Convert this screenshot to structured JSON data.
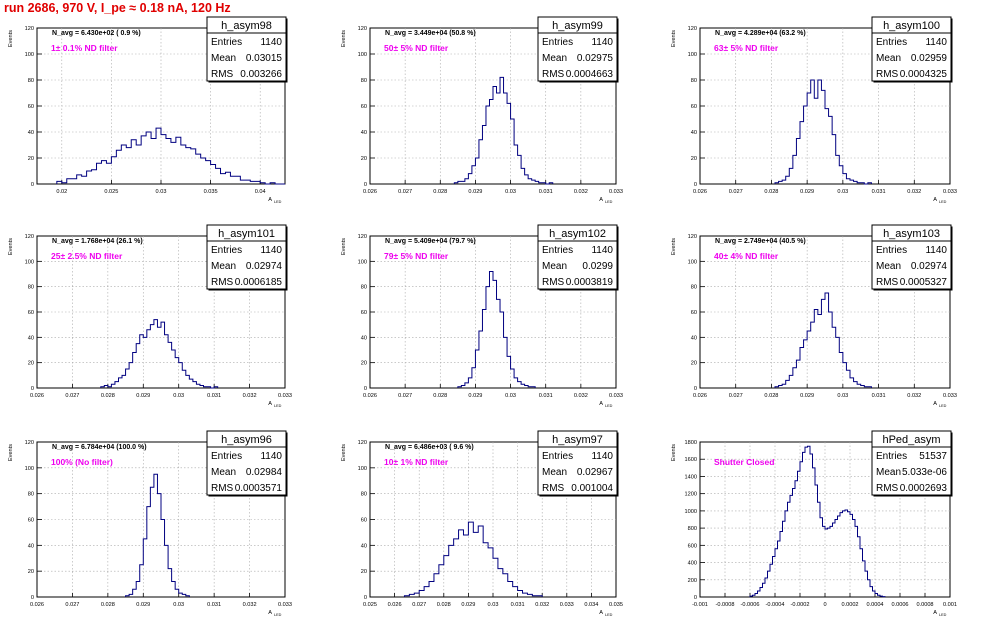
{
  "run_title": "run 2686,   970 V, I_pe ≈ 0.18 nA, 120 Hz",
  "colors": {
    "hist": "#000080",
    "label": "#ee00ee",
    "title": "#e00000",
    "grid": "#aaaaaa"
  },
  "chart_data": [
    {
      "type": "bar",
      "name": "h_asym98",
      "navg": "N_avg = 6.430e+02 ( 0.9 %)",
      "label": "1± 0.1% ND filter",
      "ylabel": "Events",
      "xlabel": "A",
      "xlabel_sub": "LED",
      "xlim": [
        0.0175,
        0.0425
      ],
      "ylim": [
        0,
        120
      ],
      "xticks": [
        0.02,
        0.025,
        0.03,
        0.035,
        0.04
      ],
      "xtick_labels": [
        "0.02",
        "0.025",
        "0.03",
        "0.035",
        "0.04"
      ],
      "yticks": [
        0,
        20,
        40,
        60,
        80,
        100,
        120
      ],
      "ytick_labels": [
        "0",
        "20",
        "40",
        "60",
        "80",
        "100",
        "120"
      ],
      "stats": [
        [
          "Entries",
          "1140"
        ],
        [
          "Mean",
          "0.03015"
        ],
        [
          "RMS",
          "0.003266"
        ]
      ],
      "bins": {
        "lo": 0.0195,
        "width": 0.0005,
        "counts": [
          2,
          1,
          4,
          4,
          7,
          6,
          10,
          11,
          16,
          18,
          16,
          21,
          26,
          30,
          28,
          34,
          30,
          37,
          40,
          35,
          43,
          38,
          35,
          32,
          36,
          30,
          28,
          27,
          23,
          20,
          18,
          15,
          12,
          8,
          9,
          6,
          6,
          3,
          3,
          2,
          2,
          1,
          0,
          1,
          0,
          0
        ]
      }
    },
    {
      "type": "bar",
      "name": "h_asym99",
      "navg": "N_avg = 3.449e+04 (50.8 %)",
      "label": "50± 5% ND filter",
      "ylabel": "Events",
      "xlabel": "A",
      "xlabel_sub": "LED",
      "xlim": [
        0.026,
        0.033
      ],
      "ylim": [
        0,
        120
      ],
      "xticks": [
        0.026,
        0.027,
        0.028,
        0.029,
        0.03,
        0.031,
        0.032,
        0.033
      ],
      "xtick_labels": [
        "0.026",
        "0.027",
        "0.028",
        "0.029",
        "0.03",
        "0.031",
        "0.032",
        "0.033"
      ],
      "yticks": [
        0,
        20,
        40,
        60,
        80,
        100,
        120
      ],
      "ytick_labels": [
        "0",
        "20",
        "40",
        "60",
        "80",
        "100",
        "120"
      ],
      "stats": [
        [
          "Entries",
          "1140"
        ],
        [
          "Mean",
          "0.02975"
        ],
        [
          "RMS",
          "0.0004663"
        ]
      ],
      "bins": {
        "lo": 0.0284,
        "width": 0.0001,
        "counts": [
          1,
          2,
          2,
          4,
          8,
          14,
          20,
          34,
          45,
          60,
          65,
          75,
          70,
          82,
          70,
          62,
          50,
          30,
          22,
          12,
          7,
          4,
          3,
          2,
          1,
          1,
          0,
          1
        ]
      }
    },
    {
      "type": "bar",
      "name": "h_asym100",
      "navg": "N_avg = 4.289e+04 (63.2 %)",
      "label": "63± 5% ND filter",
      "ylabel": "Events",
      "xlabel": "A",
      "xlabel_sub": "LED",
      "xlim": [
        0.026,
        0.033
      ],
      "ylim": [
        0,
        120
      ],
      "xticks": [
        0.026,
        0.027,
        0.028,
        0.029,
        0.03,
        0.031,
        0.032,
        0.033
      ],
      "xtick_labels": [
        "0.026",
        "0.027",
        "0.028",
        "0.029",
        "0.03",
        "0.031",
        "0.032",
        "0.033"
      ],
      "yticks": [
        0,
        20,
        40,
        60,
        80,
        100,
        120
      ],
      "ytick_labels": [
        "0",
        "20",
        "40",
        "60",
        "80",
        "100",
        "120"
      ],
      "stats": [
        [
          "Entries",
          "1140"
        ],
        [
          "Mean",
          "0.02959"
        ],
        [
          "RMS",
          "0.0004325"
        ]
      ],
      "bins": {
        "lo": 0.0281,
        "width": 0.0001,
        "counts": [
          1,
          2,
          3,
          6,
          12,
          22,
          35,
          48,
          60,
          70,
          80,
          66,
          80,
          72,
          58,
          52,
          38,
          22,
          14,
          8,
          4,
          3,
          2,
          1,
          1,
          0,
          1
        ]
      }
    },
    {
      "type": "bar",
      "name": "h_asym101",
      "navg": "N_avg = 1.768e+04 (26.1 %)",
      "label": "25± 2.5% ND filter",
      "ylabel": "Events",
      "xlabel": "A",
      "xlabel_sub": "LED",
      "xlim": [
        0.026,
        0.033
      ],
      "ylim": [
        0,
        120
      ],
      "xticks": [
        0.026,
        0.027,
        0.028,
        0.029,
        0.03,
        0.031,
        0.032,
        0.033
      ],
      "xtick_labels": [
        "0.026",
        "0.027",
        "0.028",
        "0.029",
        "0.03",
        "0.031",
        "0.032",
        "0.033"
      ],
      "yticks": [
        0,
        20,
        40,
        60,
        80,
        100,
        120
      ],
      "ytick_labels": [
        "0",
        "20",
        "40",
        "60",
        "80",
        "100",
        "120"
      ],
      "stats": [
        [
          "Entries",
          "1140"
        ],
        [
          "Mean",
          "0.02974"
        ],
        [
          "RMS",
          "0.0006185"
        ]
      ],
      "bins": {
        "lo": 0.0278,
        "width": 0.0001,
        "counts": [
          1,
          2,
          1,
          3,
          5,
          8,
          10,
          15,
          20,
          28,
          35,
          42,
          40,
          46,
          50,
          54,
          48,
          52,
          42,
          36,
          30,
          24,
          20,
          14,
          10,
          7,
          5,
          3,
          2,
          1,
          1,
          0,
          1
        ]
      }
    },
    {
      "type": "bar",
      "name": "h_asym102",
      "navg": "N_avg = 5.409e+04 (79.7 %)",
      "label": "79± 5% ND filter",
      "ylabel": "Events",
      "xlabel": "A",
      "xlabel_sub": "LED",
      "xlim": [
        0.026,
        0.033
      ],
      "ylim": [
        0,
        120
      ],
      "xticks": [
        0.026,
        0.027,
        0.028,
        0.029,
        0.03,
        0.031,
        0.032,
        0.033
      ],
      "xtick_labels": [
        "0.026",
        "0.027",
        "0.028",
        "0.029",
        "0.03",
        "0.031",
        "0.032",
        "0.033"
      ],
      "yticks": [
        0,
        20,
        40,
        60,
        80,
        100,
        120
      ],
      "ytick_labels": [
        "0",
        "20",
        "40",
        "60",
        "80",
        "100",
        "120"
      ],
      "stats": [
        [
          "Entries",
          "1140"
        ],
        [
          "Mean",
          "0.0299"
        ],
        [
          "RMS",
          "0.0003819"
        ]
      ],
      "bins": {
        "lo": 0.0285,
        "width": 0.0001,
        "counts": [
          1,
          2,
          4,
          8,
          16,
          30,
          45,
          62,
          80,
          92,
          85,
          70,
          60,
          40,
          25,
          15,
          8,
          5,
          3,
          2,
          1,
          1
        ]
      }
    },
    {
      "type": "bar",
      "name": "h_asym103",
      "navg": "N_avg = 2.749e+04 (40.5 %)",
      "label": "40± 4% ND filter",
      "ylabel": "Events",
      "xlabel": "A",
      "xlabel_sub": "LED",
      "xlim": [
        0.026,
        0.033
      ],
      "ylim": [
        0,
        120
      ],
      "xticks": [
        0.026,
        0.027,
        0.028,
        0.029,
        0.03,
        0.031,
        0.032,
        0.033
      ],
      "xtick_labels": [
        "0.026",
        "0.027",
        "0.028",
        "0.029",
        "0.03",
        "0.031",
        "0.032",
        "0.033"
      ],
      "yticks": [
        0,
        20,
        40,
        60,
        80,
        100,
        120
      ],
      "ytick_labels": [
        "0",
        "20",
        "40",
        "60",
        "80",
        "100",
        "120"
      ],
      "stats": [
        [
          "Entries",
          "1140"
        ],
        [
          "Mean",
          "0.02974"
        ],
        [
          "RMS",
          "0.0005327"
        ]
      ],
      "bins": {
        "lo": 0.0281,
        "width": 0.0001,
        "counts": [
          1,
          2,
          3,
          6,
          10,
          16,
          22,
          32,
          38,
          45,
          52,
          62,
          58,
          70,
          75,
          60,
          48,
          40,
          28,
          20,
          14,
          8,
          5,
          3,
          2,
          1,
          1
        ]
      }
    },
    {
      "type": "bar",
      "name": "h_asym96",
      "navg": "N_avg = 6.784e+04 (100.0 %)",
      "label": "100% (No filter)",
      "ylabel": "Events",
      "xlabel": "A",
      "xlabel_sub": "LED",
      "xlim": [
        0.026,
        0.033
      ],
      "ylim": [
        0,
        120
      ],
      "xticks": [
        0.026,
        0.027,
        0.028,
        0.029,
        0.03,
        0.031,
        0.032,
        0.033
      ],
      "xtick_labels": [
        "0.026",
        "0.027",
        "0.028",
        "0.029",
        "0.03",
        "0.031",
        "0.032",
        "0.033"
      ],
      "yticks": [
        0,
        20,
        40,
        60,
        80,
        100,
        120
      ],
      "ytick_labels": [
        "0",
        "20",
        "40",
        "60",
        "80",
        "100",
        "120"
      ],
      "stats": [
        [
          "Entries",
          "1140"
        ],
        [
          "Mean",
          "0.02984"
        ],
        [
          "RMS",
          "0.0003571"
        ]
      ],
      "bins": {
        "lo": 0.0285,
        "width": 0.0001,
        "counts": [
          1,
          2,
          6,
          12,
          25,
          45,
          70,
          85,
          95,
          80,
          60,
          40,
          22,
          12,
          6,
          3,
          2,
          1
        ]
      }
    },
    {
      "type": "bar",
      "name": "h_asym97",
      "navg": "N_avg = 6.486e+03 ( 9.6 %)",
      "label": "10± 1% ND filter",
      "ylabel": "Events",
      "xlabel": "A",
      "xlabel_sub": "LED",
      "xlim": [
        0.025,
        0.035
      ],
      "ylim": [
        0,
        120
      ],
      "xticks": [
        0.025,
        0.026,
        0.027,
        0.028,
        0.029,
        0.03,
        0.031,
        0.032,
        0.033,
        0.034,
        0.035
      ],
      "xtick_labels": [
        "0.025",
        "0.026",
        "0.027",
        "0.028",
        "0.029",
        "0.03",
        "0.031",
        "0.032",
        "0.033",
        "0.034",
        "0.035"
      ],
      "yticks": [
        0,
        20,
        40,
        60,
        80,
        100,
        120
      ],
      "ytick_labels": [
        "0",
        "20",
        "40",
        "60",
        "80",
        "100",
        "120"
      ],
      "stats": [
        [
          "Entries",
          "1140"
        ],
        [
          "Mean",
          "0.02967"
        ],
        [
          "RMS",
          "0.001004"
        ]
      ],
      "bins": {
        "lo": 0.0264,
        "width": 0.0002,
        "counts": [
          1,
          2,
          3,
          5,
          8,
          12,
          18,
          25,
          32,
          40,
          45,
          52,
          48,
          58,
          50,
          55,
          42,
          38,
          30,
          22,
          18,
          12,
          8,
          5,
          3,
          2,
          1,
          1
        ]
      }
    },
    {
      "type": "bar",
      "name": "hPed_asym",
      "navg": "",
      "label": "Shutter Closed",
      "ylabel": "Events",
      "xlabel": "A",
      "xlabel_sub": "LED",
      "xlim": [
        -0.001,
        0.001
      ],
      "ylim": [
        0,
        1800
      ],
      "xticks": [
        -0.001,
        -0.0008,
        -0.0006,
        -0.0004,
        -0.0002,
        0,
        0.0002,
        0.0004,
        0.0006,
        0.0008,
        0.001
      ],
      "xtick_labels": [
        "-0.001",
        "-0.0008",
        "-0.0006",
        "-0.0004",
        "-0.0002",
        "0",
        "0.0002",
        "0.0004",
        "0.0006",
        "0.0008",
        "0.001"
      ],
      "yticks": [
        0,
        200,
        400,
        600,
        800,
        1000,
        1200,
        1400,
        1600,
        1800
      ],
      "ytick_labels": [
        "0",
        "200",
        "400",
        "600",
        "800",
        "1000",
        "1200",
        "1400",
        "1600",
        "1800"
      ],
      "stats": [
        [
          "Entries",
          "51537"
        ],
        [
          "Mean",
          "5.033e-06"
        ],
        [
          "RMS",
          "0.0002693"
        ]
      ],
      "bins": {
        "lo": -0.0006,
        "width": 2e-05,
        "counts": [
          10,
          20,
          40,
          70,
          110,
          160,
          220,
          300,
          380,
          470,
          560,
          650,
          760,
          880,
          1000,
          1100,
          1180,
          1260,
          1350,
          1460,
          1570,
          1680,
          1740,
          1750,
          1660,
          1500,
          1300,
          1100,
          920,
          820,
          790,
          800,
          820,
          860,
          900,
          940,
          980,
          1000,
          1010,
          990,
          960,
          900,
          820,
          700,
          560,
          420,
          300,
          200,
          120,
          70,
          40,
          20,
          10,
          5
        ]
      }
    }
  ]
}
